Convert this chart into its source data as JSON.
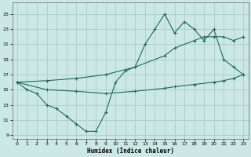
{
  "xlabel": "Humidex (Indice chaleur)",
  "bg_color": "#cce8e4",
  "grid_color": "#aaccc8",
  "line_color": "#1a6b5a",
  "xlim": [
    -0.5,
    23.5
  ],
  "ylim": [
    8.5,
    26.5
  ],
  "xticks": [
    0,
    1,
    2,
    3,
    4,
    5,
    6,
    7,
    8,
    9,
    10,
    11,
    12,
    13,
    14,
    15,
    16,
    17,
    18,
    19,
    20,
    21,
    22,
    23
  ],
  "yticks": [
    9,
    11,
    13,
    15,
    17,
    19,
    21,
    23,
    25
  ],
  "series1_x": [
    0,
    1,
    2,
    3,
    4,
    5,
    6,
    7,
    8,
    9,
    10,
    11,
    12,
    13,
    14,
    15,
    16,
    17,
    18,
    19,
    20,
    21,
    22,
    23
  ],
  "series1_y": [
    16,
    15,
    14.5,
    13,
    12.5,
    11.5,
    10.5,
    9.5,
    9.5,
    12,
    16,
    17.5,
    18,
    21,
    23,
    25,
    22.5,
    24,
    23,
    21.5,
    23,
    19,
    18,
    17
  ],
  "series2_x": [
    0,
    3,
    6,
    9,
    12,
    15,
    16,
    18,
    19,
    20,
    21,
    22,
    23
  ],
  "series2_y": [
    16,
    16.2,
    16.5,
    17.0,
    18.0,
    19.5,
    20.5,
    21.5,
    22.0,
    22.0,
    22.0,
    21.5,
    22.0
  ],
  "series3_x": [
    0,
    3,
    6,
    9,
    12,
    15,
    16,
    18,
    20,
    21,
    22,
    23
  ],
  "series3_y": [
    16,
    15.0,
    14.8,
    14.5,
    14.8,
    15.2,
    15.4,
    15.7,
    16.0,
    16.2,
    16.5,
    17.0
  ]
}
